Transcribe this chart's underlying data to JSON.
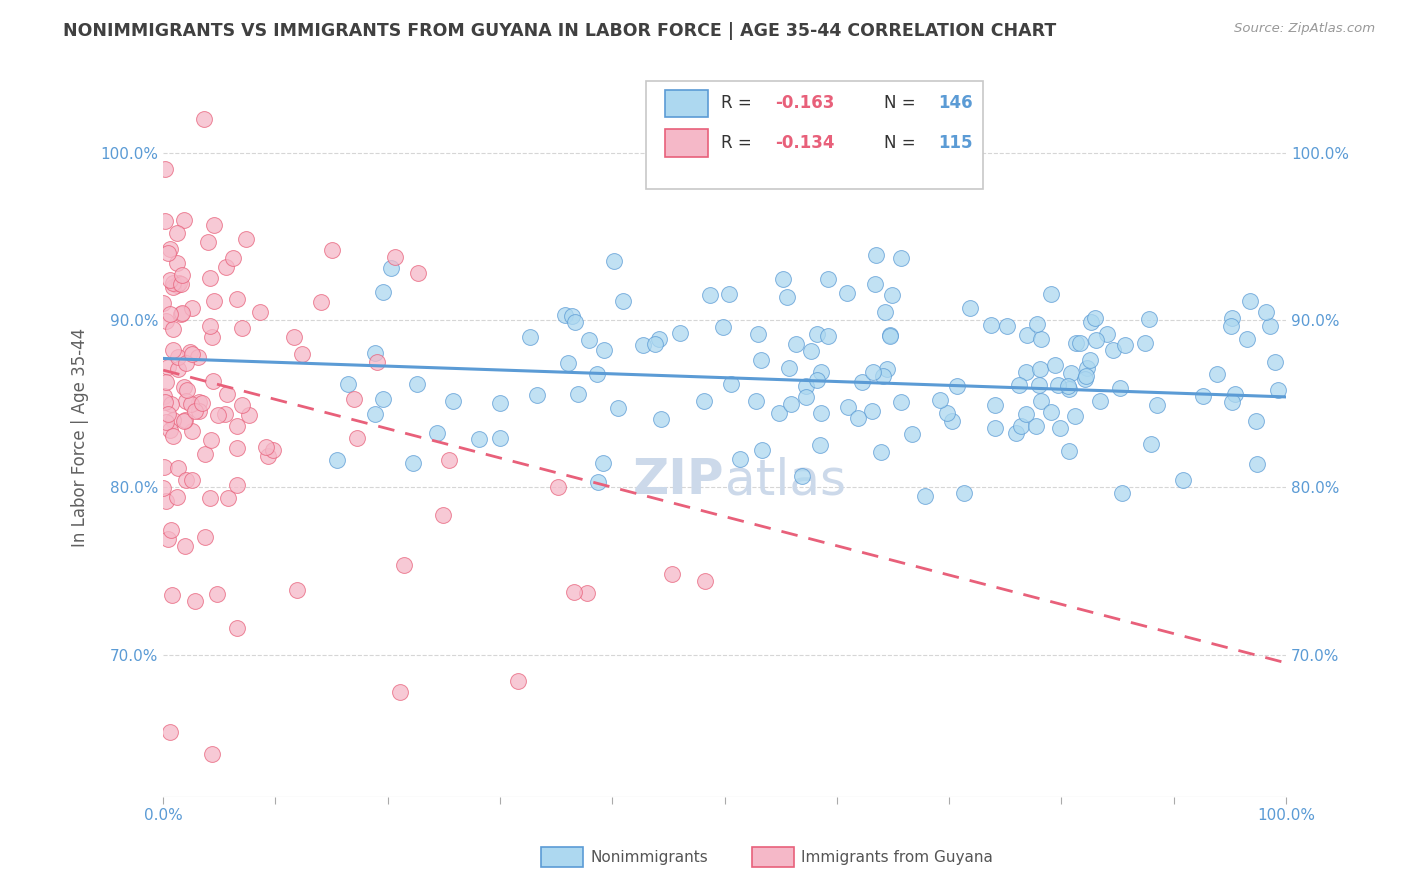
{
  "title": "NONIMMIGRANTS VS IMMIGRANTS FROM GUYANA IN LABOR FORCE | AGE 35-44 CORRELATION CHART",
  "source_text": "Source: ZipAtlas.com",
  "ylabel": "In Labor Force | Age 35-44",
  "xlim": [
    0.0,
    1.0
  ],
  "ylim": [
    0.615,
    1.045
  ],
  "y_tick_values": [
    0.7,
    0.8,
    0.9,
    1.0
  ],
  "y_tick_labels": [
    "70.0%",
    "80.0%",
    "90.0%",
    "100.0%"
  ],
  "x_tick_positions": [
    0.0,
    0.1,
    0.2,
    0.3,
    0.4,
    0.5,
    0.6,
    0.7,
    0.8,
    0.9,
    1.0
  ],
  "x_tick_labels_shown": [
    "0.0%",
    "",
    "",
    "",
    "",
    "",
    "",
    "",
    "",
    "",
    "100.0%"
  ],
  "nonimmigrant_color": "#add8f0",
  "immigrant_color": "#f5b8c8",
  "trend_nonimmigrant_color": "#5b9bd5",
  "trend_immigrant_color": "#e8607a",
  "background_color": "#ffffff",
  "grid_color": "#cccccc",
  "watermark_color": "#ccd9ea",
  "title_color": "#404040",
  "axis_label_color": "#606060",
  "tick_label_color": "#5b9bd5",
  "legend_r_color": "#e8607a",
  "legend_n_color": "#5b9bd5",
  "n_nonimmigrant": 146,
  "n_immigrant": 115,
  "nonimmigrant_R": -0.163,
  "immigrant_R": -0.134,
  "nonimmigrant_seed": 42,
  "immigrant_seed": 99,
  "trend1_x0": 0.0,
  "trend1_x1": 1.0,
  "trend1_y0": 0.877,
  "trend1_y1": 0.854,
  "trend2_x0": 0.0,
  "trend2_x1": 1.0,
  "trend2_y0": 0.87,
  "trend2_y1": 0.695
}
